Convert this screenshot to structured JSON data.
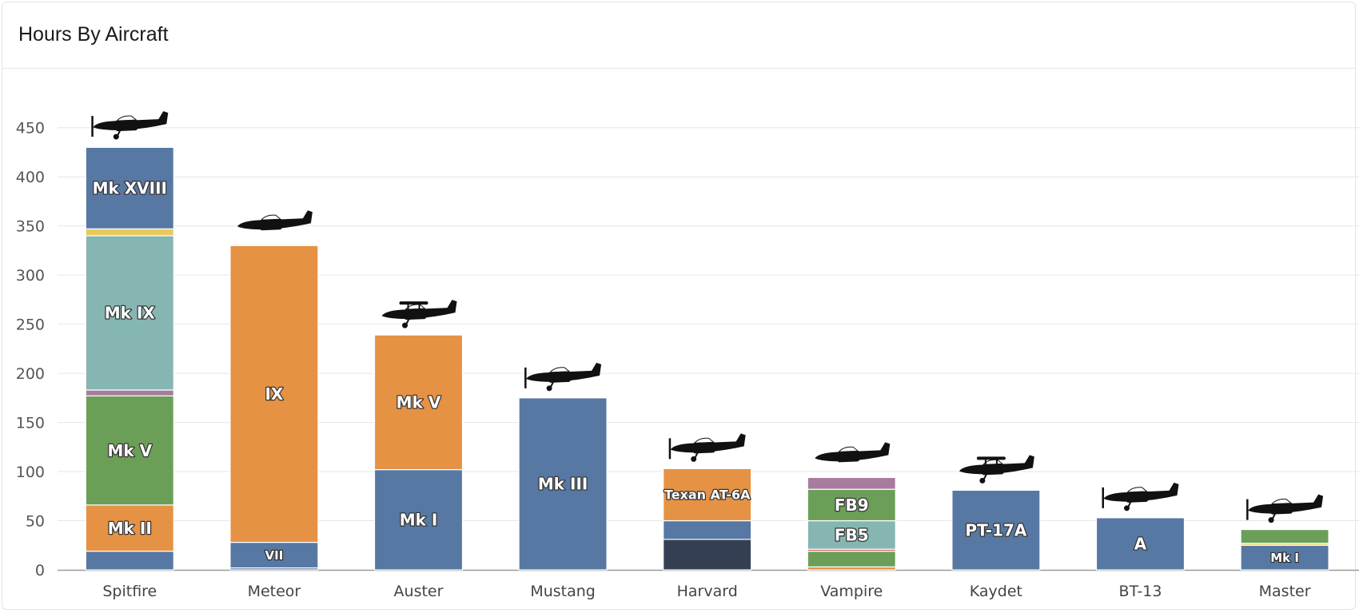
{
  "header": {
    "title": "Hours By Aircraft"
  },
  "colors": {
    "blue": "#5778a3",
    "orange": "#e59244",
    "green": "#6b9f58",
    "teal": "#85b6b2",
    "yellow": "#e8c95d",
    "purple": "#a77c9f",
    "navy": "#353f54",
    "red": "#d1605e",
    "grid": "#e6e6e6",
    "axis": "#999999"
  },
  "chart_data": {
    "type": "bar",
    "stacked": true,
    "title": "Hours By Aircraft",
    "xlabel": "",
    "ylabel": "",
    "ylim": [
      0,
      470
    ],
    "yticks": [
      0,
      50,
      100,
      150,
      200,
      250,
      300,
      350,
      400,
      450
    ],
    "grid": true,
    "categories": [
      "Spitfire",
      "Meteor",
      "Auster",
      "Mustang",
      "Harvard",
      "Vampire",
      "Kaydet",
      "BT-13",
      "Master"
    ],
    "bars": [
      {
        "category": "Spitfire",
        "icon": "spitfire-silhouette-icon",
        "segments": [
          {
            "value": 19,
            "color": "blue",
            "label": ""
          },
          {
            "value": 47,
            "color": "orange",
            "label": "Mk II"
          },
          {
            "value": 111,
            "color": "green",
            "label": "Mk V"
          },
          {
            "value": 6,
            "color": "purple",
            "label": ""
          },
          {
            "value": 157,
            "color": "teal",
            "label": "Mk IX"
          },
          {
            "value": 7,
            "color": "yellow",
            "label": ""
          },
          {
            "value": 83,
            "color": "blue",
            "label": "Mk XVIII"
          },
          {
            "value": 1,
            "color": "orange",
            "label": ""
          }
        ]
      },
      {
        "category": "Meteor",
        "icon": "meteor-silhouette-icon",
        "segments": [
          {
            "value": 2,
            "color": "blue",
            "label": ""
          },
          {
            "value": 26,
            "color": "blue",
            "label": "VII"
          },
          {
            "value": 302,
            "color": "orange",
            "label": "IX"
          }
        ]
      },
      {
        "category": "Auster",
        "icon": "auster-silhouette-icon",
        "segments": [
          {
            "value": 102,
            "color": "blue",
            "label": "Mk I"
          },
          {
            "value": 137,
            "color": "orange",
            "label": "Mk V"
          }
        ]
      },
      {
        "category": "Mustang",
        "icon": "mustang-silhouette-icon",
        "segments": [
          {
            "value": 175,
            "color": "blue",
            "label": "Mk III"
          }
        ]
      },
      {
        "category": "Harvard",
        "icon": "harvard-silhouette-icon",
        "segments": [
          {
            "value": 31,
            "color": "navy",
            "label": ""
          },
          {
            "value": 19,
            "color": "blue",
            "label": ""
          },
          {
            "value": 53,
            "color": "orange",
            "label": "Texan AT-6A"
          }
        ]
      },
      {
        "category": "Vampire",
        "icon": "vampire-silhouette-icon",
        "segments": [
          {
            "value": 3,
            "color": "orange",
            "label": ""
          },
          {
            "value": 16,
            "color": "green",
            "label": ""
          },
          {
            "value": 2,
            "color": "red",
            "label": ""
          },
          {
            "value": 29,
            "color": "teal",
            "label": "FB5"
          },
          {
            "value": 32,
            "color": "green",
            "label": "FB9"
          },
          {
            "value": 12,
            "color": "purple",
            "label": ""
          }
        ]
      },
      {
        "category": "Kaydet",
        "icon": "kaydet-silhouette-icon",
        "segments": [
          {
            "value": 81,
            "color": "blue",
            "label": "PT-17A"
          }
        ]
      },
      {
        "category": "BT-13",
        "icon": "bt13-silhouette-icon",
        "segments": [
          {
            "value": 53,
            "color": "blue",
            "label": "A"
          }
        ]
      },
      {
        "category": "Master",
        "icon": "master-silhouette-icon",
        "segments": [
          {
            "value": 25,
            "color": "blue",
            "label": "Mk I"
          },
          {
            "value": 2,
            "color": "yellow",
            "label": ""
          },
          {
            "value": 14,
            "color": "green",
            "label": ""
          }
        ]
      }
    ]
  }
}
